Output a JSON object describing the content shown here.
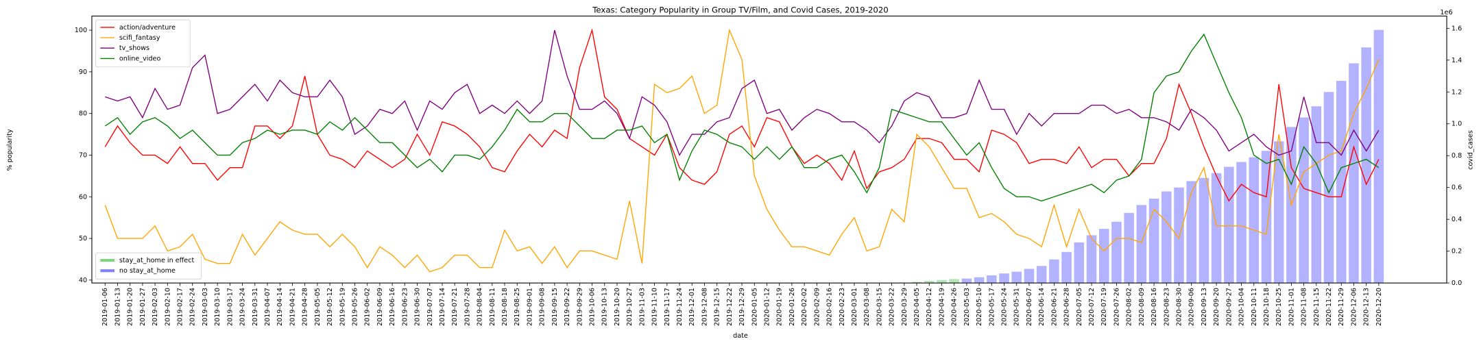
{
  "chart_data": {
    "type": "line",
    "title": "Texas: Category Popularity in Group TV/Film, and Covid Cases, 2019-2020",
    "xlabel": "date",
    "ylabel": "% popularity",
    "y2label": "covid_cases",
    "y2_offset_label": "1e6",
    "legend": "upper left",
    "bar_legend": "lower left",
    "categories": [
      "2019-01-06",
      "2019-01-13",
      "2019-01-20",
      "2019-01-27",
      "2019-02-03",
      "2019-02-10",
      "2019-02-17",
      "2019-02-24",
      "2019-03-03",
      "2019-03-10",
      "2019-03-17",
      "2019-03-24",
      "2019-03-31",
      "2019-04-07",
      "2019-04-14",
      "2019-04-21",
      "2019-04-28",
      "2019-05-05",
      "2019-05-12",
      "2019-05-19",
      "2019-05-26",
      "2019-06-02",
      "2019-06-09",
      "2019-06-16",
      "2019-06-23",
      "2019-06-30",
      "2019-07-07",
      "2019-07-14",
      "2019-07-21",
      "2019-07-28",
      "2019-08-04",
      "2019-08-11",
      "2019-08-18",
      "2019-08-25",
      "2019-09-01",
      "2019-09-08",
      "2019-09-15",
      "2019-09-22",
      "2019-09-29",
      "2019-10-06",
      "2019-10-13",
      "2019-10-20",
      "2019-10-27",
      "2019-11-03",
      "2019-11-10",
      "2019-11-17",
      "2019-11-24",
      "2019-12-01",
      "2019-12-08",
      "2019-12-15",
      "2019-12-22",
      "2019-12-29",
      "2020-01-05",
      "2020-01-12",
      "2020-01-19",
      "2020-01-26",
      "2020-02-02",
      "2020-02-09",
      "2020-02-16",
      "2020-02-23",
      "2020-03-01",
      "2020-03-08",
      "2020-03-15",
      "2020-03-22",
      "2020-03-29",
      "2020-04-05",
      "2020-04-12",
      "2020-04-19",
      "2020-04-26",
      "2020-05-03",
      "2020-05-10",
      "2020-05-17",
      "2020-05-24",
      "2020-05-31",
      "2020-06-07",
      "2020-06-14",
      "2020-06-21",
      "2020-06-28",
      "2020-07-05",
      "2020-07-12",
      "2020-07-19",
      "2020-07-26",
      "2020-08-02",
      "2020-08-09",
      "2020-08-16",
      "2020-08-23",
      "2020-08-30",
      "2020-09-06",
      "2020-09-13",
      "2020-09-20",
      "2020-09-27",
      "2020-10-04",
      "2020-10-11",
      "2020-10-18",
      "2020-10-25",
      "2020-11-01",
      "2020-11-08",
      "2020-11-15",
      "2020-11-22",
      "2020-11-29",
      "2020-12-06",
      "2020-12-13",
      "2020-12-20"
    ],
    "ylim": [
      39.3,
      103.4
    ],
    "yticks": [
      40,
      50,
      60,
      70,
      80,
      90,
      100
    ],
    "y2lim": [
      0,
      1677000
    ],
    "y2ticks": [
      {
        "value": 0,
        "label": "0.0"
      },
      {
        "value": 200000,
        "label": "0.2"
      },
      {
        "value": 400000,
        "label": "0.4"
      },
      {
        "value": 600000,
        "label": "0.6"
      },
      {
        "value": 800000,
        "label": "0.8"
      },
      {
        "value": 1000000,
        "label": "1.0"
      },
      {
        "value": 1200000,
        "label": "1.2"
      },
      {
        "value": 1400000,
        "label": "1.4"
      },
      {
        "value": 1600000,
        "label": "1.6"
      }
    ],
    "series": [
      {
        "name": "action/adventure",
        "type": "line",
        "color": "#ff0000",
        "values": [
          72,
          77,
          73,
          70,
          70,
          68,
          72,
          68,
          68,
          64,
          67,
          67,
          77,
          77,
          74,
          77,
          89,
          75,
          70,
          69,
          67,
          71,
          69,
          67,
          69,
          75,
          70,
          78,
          77,
          75,
          72,
          67,
          66,
          71,
          75,
          72,
          76,
          74,
          91,
          100,
          84,
          81,
          74,
          72,
          70,
          75,
          67,
          64,
          63,
          66,
          75,
          77,
          72,
          79,
          78,
          72,
          68,
          70,
          68,
          64,
          71,
          62,
          66,
          67,
          69,
          74,
          74,
          73,
          69,
          69,
          66,
          76,
          75,
          73,
          68,
          69,
          69,
          68,
          72,
          67,
          69,
          69,
          65,
          68,
          68,
          74,
          87,
          80,
          72,
          65,
          59,
          63,
          61,
          60,
          87,
          67,
          62,
          61,
          60,
          60,
          72,
          63,
          69
        ]
      },
      {
        "name": "scifi_fantasy",
        "type": "line",
        "color": "#ffa500",
        "values": [
          58,
          50,
          50,
          50,
          53,
          47,
          48,
          51,
          45,
          44,
          44,
          51,
          46,
          50,
          54,
          52,
          51,
          51,
          48,
          51,
          48,
          43,
          48,
          46,
          43,
          46,
          42,
          43,
          46,
          46,
          43,
          43,
          52,
          47,
          48,
          44,
          48,
          43,
          47,
          47,
          46,
          45,
          59,
          44,
          87,
          85,
          86,
          89,
          80,
          82,
          100,
          93,
          65,
          57,
          52,
          48,
          48,
          47,
          46,
          51,
          55,
          47,
          48,
          57,
          54,
          75,
          72,
          67,
          62,
          62,
          55,
          56,
          54,
          51,
          50,
          48,
          58,
          48,
          57,
          50,
          47,
          50,
          50,
          49,
          57,
          54,
          50,
          61,
          67,
          53,
          53,
          53,
          52,
          51,
          75,
          58,
          66,
          68,
          70,
          71,
          80,
          86,
          93
        ]
      },
      {
        "name": "tv_shows",
        "type": "line",
        "color": "#800080",
        "values": [
          84,
          83,
          84,
          79,
          86,
          81,
          82,
          91,
          94,
          80,
          81,
          84,
          87,
          83,
          88,
          85,
          84,
          84,
          88,
          84,
          75,
          77,
          81,
          80,
          83,
          76,
          83,
          81,
          85,
          87,
          80,
          82,
          80,
          83,
          80,
          83,
          100,
          89,
          81,
          81,
          83,
          80,
          74,
          84,
          82,
          78,
          70,
          75,
          75,
          78,
          79,
          86,
          88,
          80,
          81,
          76,
          79,
          81,
          80,
          78,
          78,
          76,
          73,
          77,
          83,
          85,
          84,
          79,
          79,
          80,
          88,
          81,
          81,
          75,
          80,
          77,
          80,
          80,
          80,
          82,
          82,
          80,
          81,
          79,
          79,
          78,
          76,
          81,
          79,
          76,
          71,
          73,
          75,
          72,
          70,
          71,
          84,
          73,
          73,
          70,
          76,
          71,
          76
        ]
      },
      {
        "name": "online_video",
        "type": "line",
        "color": "#008000",
        "values": [
          77,
          79,
          75,
          78,
          79,
          77,
          74,
          76,
          73,
          70,
          70,
          73,
          74,
          76,
          75,
          76,
          76,
          75,
          78,
          76,
          79,
          76,
          73,
          73,
          70,
          67,
          69,
          66,
          70,
          70,
          69,
          72,
          76,
          81,
          78,
          78,
          80,
          80,
          77,
          74,
          74,
          76,
          76,
          77,
          73,
          75,
          64,
          71,
          76,
          75,
          73,
          72,
          69,
          72,
          69,
          72,
          67,
          67,
          69,
          70,
          66,
          61,
          67,
          81,
          80,
          79,
          78,
          78,
          74,
          70,
          73,
          67,
          62,
          60,
          60,
          59,
          60,
          61,
          62,
          63,
          61,
          64,
          65,
          69,
          85,
          89,
          90,
          95,
          99,
          92,
          85,
          79,
          70,
          68,
          69,
          63,
          72,
          68,
          61,
          67,
          68,
          69,
          67
        ]
      },
      {
        "name": "stay_at_home in effect",
        "type": "bar",
        "axis": "y2",
        "color": "#00aa00",
        "values": [
          null,
          null,
          null,
          null,
          null,
          null,
          null,
          null,
          null,
          null,
          null,
          null,
          null,
          null,
          null,
          null,
          null,
          null,
          null,
          null,
          null,
          null,
          null,
          null,
          null,
          null,
          null,
          null,
          null,
          null,
          null,
          null,
          null,
          null,
          null,
          null,
          null,
          null,
          null,
          null,
          null,
          null,
          null,
          null,
          null,
          null,
          null,
          null,
          null,
          null,
          null,
          null,
          null,
          null,
          null,
          null,
          null,
          null,
          null,
          null,
          null,
          null,
          null,
          null,
          3000,
          7000,
          13000,
          19000,
          25000,
          null,
          null,
          null,
          null,
          null,
          null,
          null,
          null,
          null,
          null,
          null,
          null,
          null,
          null,
          null,
          null,
          null,
          null,
          null,
          null,
          null,
          null,
          null,
          null,
          null,
          null,
          null,
          null,
          null,
          null,
          null,
          null,
          null,
          null
        ]
      },
      {
        "name": "no stay_at_home",
        "type": "bar",
        "axis": "y2",
        "color": "#0000ff",
        "values": [
          null,
          null,
          null,
          null,
          null,
          null,
          null,
          null,
          null,
          null,
          null,
          null,
          null,
          null,
          null,
          null,
          null,
          null,
          null,
          null,
          null,
          null,
          null,
          null,
          null,
          null,
          null,
          null,
          null,
          null,
          null,
          null,
          null,
          null,
          null,
          null,
          null,
          null,
          null,
          null,
          null,
          null,
          null,
          null,
          null,
          null,
          null,
          null,
          null,
          null,
          null,
          null,
          null,
          null,
          null,
          null,
          null,
          null,
          null,
          null,
          null,
          null,
          300,
          1500,
          null,
          null,
          null,
          null,
          null,
          28000,
          36000,
          48000,
          60000,
          71000,
          89000,
          107000,
          148000,
          195000,
          255000,
          300000,
          340000,
          385000,
          440000,
          490000,
          530000,
          575000,
          600000,
          640000,
          660000,
          690000,
          730000,
          760000,
          790000,
          830000,
          890000,
          980000,
          1040000,
          1110000,
          1200000,
          1270000,
          1380000,
          1480000,
          1590000
        ]
      }
    ]
  }
}
